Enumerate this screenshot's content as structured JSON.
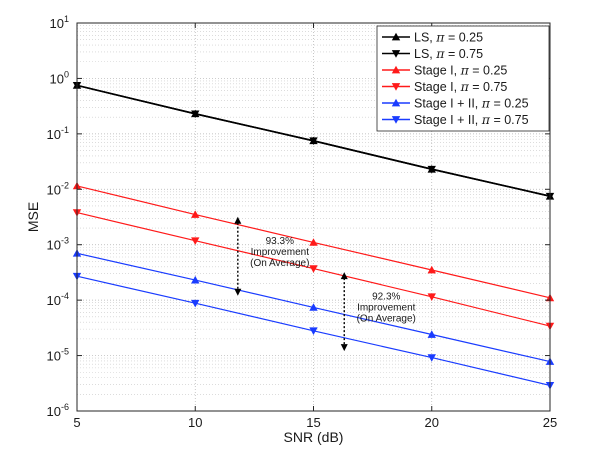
{
  "chart_data": {
    "type": "line",
    "x_scale": "linear",
    "y_scale": "log",
    "xlabel": "SNR (dB)",
    "ylabel": "MSE",
    "xlim": [
      5,
      25
    ],
    "ylim": [
      1e-06,
      10
    ],
    "grid": true,
    "legend_position": "top-right",
    "x": [
      5,
      10,
      15,
      20,
      25
    ],
    "x_ticks": [
      "5",
      "10",
      "15",
      "20",
      "25"
    ],
    "y_tick_bases": [
      "10",
      "10",
      "10",
      "10",
      "10",
      "10",
      "10",
      "10"
    ],
    "y_tick_exponents": [
      "-6",
      "-5",
      "-4",
      "-3",
      "-2",
      "-1",
      "0",
      "1"
    ],
    "series": [
      {
        "name": "LS, π = 0.25",
        "color": "#000000",
        "marker": "triangle-up",
        "values": [
          0.75,
          0.23,
          0.075,
          0.023,
          0.0075
        ]
      },
      {
        "name": "LS, π = 0.75",
        "color": "#000000",
        "marker": "triangle-down",
        "values": [
          0.75,
          0.23,
          0.075,
          0.023,
          0.0075
        ]
      },
      {
        "name": "Stage I, π = 0.25",
        "color": "#ff1a1a",
        "marker": "triangle-up",
        "values": [
          0.0115,
          0.0035,
          0.0011,
          0.00035,
          0.00011
        ]
      },
      {
        "name": "Stage I, π = 0.75",
        "color": "#ff1a1a",
        "marker": "triangle-down",
        "values": [
          0.0038,
          0.00118,
          0.00037,
          0.000115,
          3.4e-05
        ]
      },
      {
        "name": "Stage I + II, π = 0.25",
        "color": "#1a3cff",
        "marker": "triangle-up",
        "values": [
          0.0007,
          0.00023,
          7.4e-05,
          2.4e-05,
          7.8e-06
        ]
      },
      {
        "name": "Stage I + II, π = 0.75",
        "color": "#1a3cff",
        "marker": "triangle-down",
        "values": [
          0.00027,
          8.8e-05,
          2.8e-05,
          9.2e-06,
          2.9e-06
        ]
      }
    ],
    "annotations": [
      {
        "lines": [
          "93.3%",
          "Improvement",
          "(On Average)"
        ],
        "arrow_x": 11.8,
        "arrow_y_top": 0.0032,
        "arrow_y_bottom": 0.00012
      },
      {
        "lines": [
          "92.3%",
          "Improvement",
          "(On Average)"
        ],
        "arrow_x": 16.3,
        "arrow_y_top": 0.00032,
        "arrow_y_bottom": 1.2e-05
      }
    ]
  }
}
